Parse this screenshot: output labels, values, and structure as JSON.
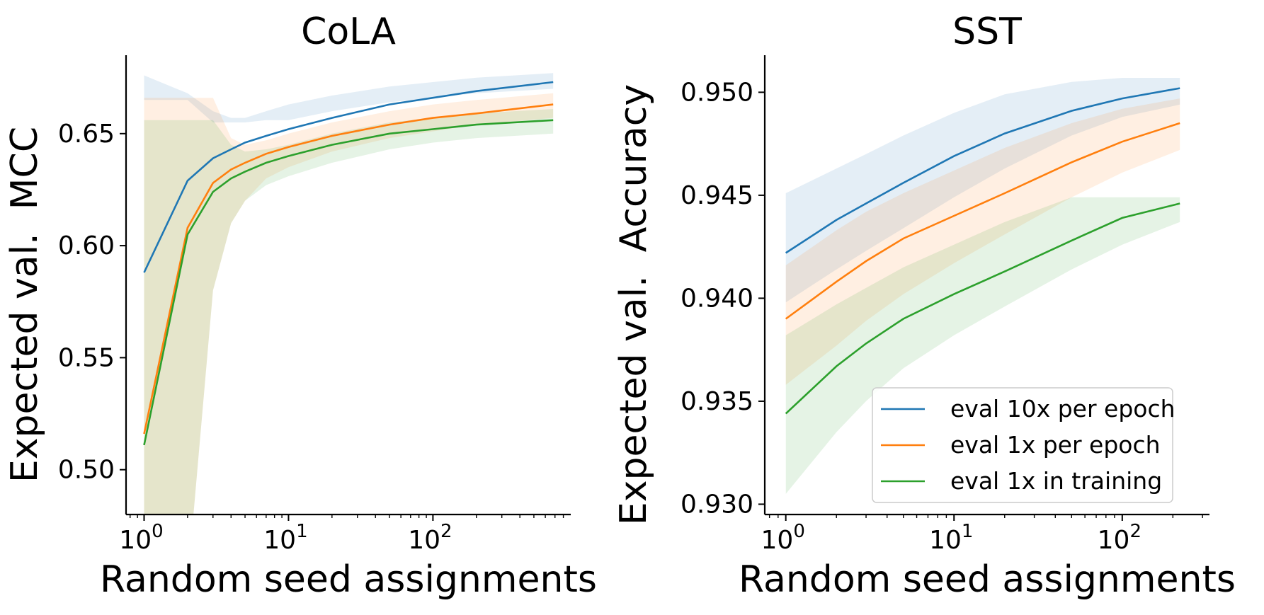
{
  "chart_data": [
    {
      "type": "line",
      "title": "CoLA",
      "xlabel": "Random seed assignments",
      "ylabel": "Expected val.  MCC",
      "xscale": "log",
      "xlim": [
        0.75,
        900
      ],
      "ylim": [
        0.48,
        0.685
      ],
      "xticks": [
        1,
        10,
        100
      ],
      "xtick_labels": [
        "10",
        "10",
        "10"
      ],
      "xtick_exponents": [
        "0",
        "1",
        "2"
      ],
      "yticks": [
        0.5,
        0.55,
        0.6,
        0.65
      ],
      "ytick_labels": [
        "0.50",
        "0.55",
        "0.60",
        "0.65"
      ],
      "grid": false,
      "series": [
        {
          "name": "eval 10x per epoch",
          "color": "#1f77b4",
          "x": [
            1,
            2,
            3,
            4,
            5,
            7,
            10,
            20,
            50,
            100,
            200,
            680
          ],
          "y": [
            0.588,
            0.629,
            0.639,
            0.643,
            0.646,
            0.649,
            0.652,
            0.657,
            0.663,
            0.666,
            0.669,
            0.673
          ],
          "lower": [
            0.665,
            0.665,
            0.655,
            0.655,
            0.655,
            0.656,
            0.656,
            0.66,
            0.664,
            0.666,
            0.668,
            0.67
          ],
          "upper": [
            0.676,
            0.668,
            0.66,
            0.657,
            0.657,
            0.66,
            0.663,
            0.667,
            0.671,
            0.673,
            0.675,
            0.677
          ]
        },
        {
          "name": "eval 1x per epoch",
          "color": "#ff7f0e",
          "x": [
            1,
            2,
            3,
            4,
            5,
            7,
            10,
            20,
            50,
            100,
            200,
            680
          ],
          "y": [
            0.516,
            0.608,
            0.628,
            0.634,
            0.637,
            0.641,
            0.644,
            0.649,
            0.654,
            0.657,
            0.659,
            0.663
          ],
          "lower": [
            0.45,
            0.45,
            0.58,
            0.61,
            0.62,
            0.63,
            0.635,
            0.642,
            0.648,
            0.651,
            0.654,
            0.657
          ],
          "upper": [
            0.666,
            0.666,
            0.666,
            0.648,
            0.645,
            0.647,
            0.65,
            0.655,
            0.66,
            0.663,
            0.665,
            0.668
          ]
        },
        {
          "name": "eval 1x in training",
          "color": "#2ca02c",
          "x": [
            1,
            2,
            3,
            4,
            5,
            7,
            10,
            20,
            50,
            100,
            200,
            680
          ],
          "y": [
            0.511,
            0.605,
            0.624,
            0.63,
            0.633,
            0.637,
            0.64,
            0.645,
            0.65,
            0.652,
            0.654,
            0.656
          ],
          "lower": [
            0.45,
            0.45,
            0.58,
            0.61,
            0.62,
            0.627,
            0.631,
            0.637,
            0.643,
            0.646,
            0.648,
            0.65
          ],
          "upper": [
            0.656,
            0.656,
            0.656,
            0.645,
            0.642,
            0.643,
            0.645,
            0.65,
            0.655,
            0.657,
            0.659,
            0.661
          ]
        }
      ]
    },
    {
      "type": "line",
      "title": "SST",
      "xlabel": "Random seed assignments",
      "ylabel": "Expected val.  Accuracy",
      "xscale": "log",
      "xlim": [
        0.75,
        330
      ],
      "ylim": [
        0.9295,
        0.9518
      ],
      "xticks": [
        1,
        10,
        100
      ],
      "xtick_labels": [
        "10",
        "10",
        "10"
      ],
      "xtick_exponents": [
        "0",
        "1",
        "2"
      ],
      "yticks": [
        0.93,
        0.935,
        0.94,
        0.945,
        0.95
      ],
      "ytick_labels": [
        "0.930",
        "0.935",
        "0.940",
        "0.945",
        "0.950"
      ],
      "grid": false,
      "legend": {
        "placement": "lower right"
      },
      "series": [
        {
          "name": "eval 10x per epoch",
          "color": "#1f77b4",
          "x": [
            1,
            2,
            3,
            5,
            10,
            20,
            50,
            100,
            220
          ],
          "y": [
            0.9422,
            0.9438,
            0.9446,
            0.9456,
            0.9469,
            0.948,
            0.9491,
            0.9497,
            0.9502
          ],
          "lower": [
            0.9398,
            0.9414,
            0.9423,
            0.9434,
            0.9449,
            0.9463,
            0.9479,
            0.9488,
            0.9494
          ],
          "upper": [
            0.9451,
            0.9463,
            0.947,
            0.9479,
            0.949,
            0.9499,
            0.9505,
            0.9507,
            0.9507
          ]
        },
        {
          "name": "eval 1x per epoch",
          "color": "#ff7f0e",
          "x": [
            1,
            2,
            3,
            5,
            10,
            20,
            50,
            100,
            220
          ],
          "y": [
            0.939,
            0.9408,
            0.9418,
            0.9429,
            0.944,
            0.9451,
            0.9466,
            0.9476,
            0.9485
          ],
          "lower": [
            0.9358,
            0.9377,
            0.9389,
            0.9402,
            0.9417,
            0.9431,
            0.9449,
            0.9461,
            0.9472
          ],
          "upper": [
            0.9416,
            0.9433,
            0.9442,
            0.9451,
            0.9462,
            0.9473,
            0.9485,
            0.9492,
            0.9497
          ]
        },
        {
          "name": "eval 1x in training",
          "color": "#2ca02c",
          "x": [
            1,
            2,
            3,
            5,
            10,
            20,
            50,
            100,
            220
          ],
          "y": [
            0.9344,
            0.9367,
            0.9378,
            0.939,
            0.9402,
            0.9413,
            0.9428,
            0.9439,
            0.9446
          ],
          "lower": [
            0.9305,
            0.9335,
            0.935,
            0.9366,
            0.9382,
            0.9396,
            0.9414,
            0.9426,
            0.9437
          ],
          "upper": [
            0.9382,
            0.9397,
            0.9405,
            0.9415,
            0.9426,
            0.9437,
            0.9449,
            0.9449,
            0.9449
          ]
        }
      ]
    }
  ]
}
